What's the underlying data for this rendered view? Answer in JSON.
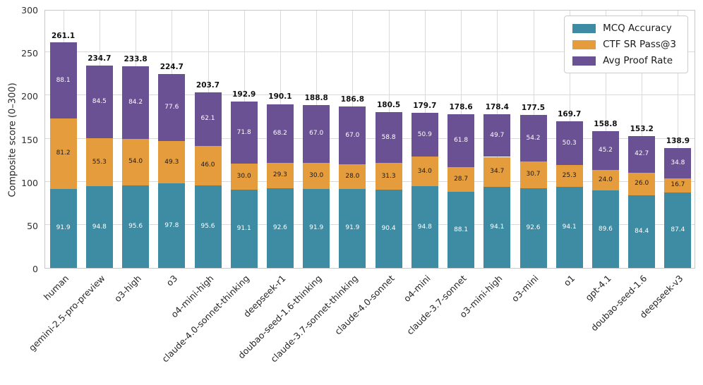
{
  "chart_data": {
    "type": "bar",
    "stacked": true,
    "title": "",
    "xlabel": "",
    "ylabel": "Composite score (0–300)",
    "ylim": [
      0,
      300
    ],
    "yticks": [
      0,
      50,
      100,
      150,
      200,
      250,
      300
    ],
    "grid": true,
    "legend_position": "upper right",
    "categories": [
      "human",
      "gemini-2.5-pro-preview",
      "o3-high",
      "o3",
      "o4-mini-high",
      "claude-4.0-sonnet-thinking",
      "deepseek-r1",
      "doubao-seed-1.6-thinking",
      "claude-3.7-sonnet-thinking",
      "claude-4.0-sonnet",
      "o4-mini",
      "claude-3.7-sonnet",
      "o3-mini-high",
      "o3-mini",
      "o1",
      "gpt-4.1",
      "doubao-seed-1.6",
      "deepseek-v3"
    ],
    "series": [
      {
        "name": "MCQ Accuracy",
        "color": "#3e8ca4",
        "label_color": "#ffffff",
        "values": [
          91.9,
          94.8,
          95.6,
          97.8,
          95.6,
          91.1,
          92.6,
          91.9,
          91.9,
          90.4,
          94.8,
          88.1,
          94.1,
          92.6,
          94.1,
          89.6,
          84.4,
          87.4
        ]
      },
      {
        "name": "CTF SR Pass@3",
        "color": "#e59c3c",
        "label_color": "#1a1a1a",
        "values": [
          81.2,
          55.3,
          54.0,
          49.3,
          46.0,
          30.0,
          29.3,
          30.0,
          28.0,
          31.3,
          34.0,
          28.7,
          34.7,
          30.7,
          25.3,
          24.0,
          26.0,
          16.7
        ]
      },
      {
        "name": "Avg Proof Rate",
        "color": "#6a5193",
        "label_color": "#ffffff",
        "values": [
          88.1,
          84.5,
          84.2,
          77.6,
          62.1,
          71.8,
          68.2,
          67.0,
          67.0,
          58.8,
          50.9,
          61.8,
          49.7,
          54.2,
          50.3,
          45.2,
          42.7,
          34.8
        ]
      }
    ],
    "totals": [
      261.1,
      234.7,
      233.8,
      224.7,
      203.7,
      192.9,
      190.1,
      188.8,
      186.8,
      180.5,
      179.7,
      178.6,
      178.4,
      177.5,
      169.7,
      158.8,
      153.2,
      138.9
    ]
  }
}
